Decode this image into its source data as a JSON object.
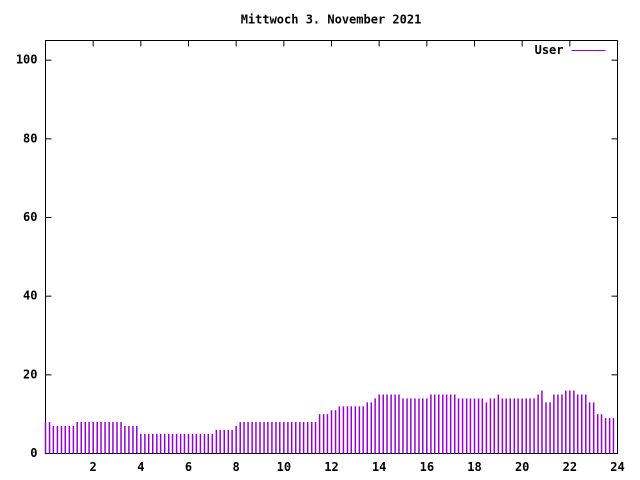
{
  "chart_data": {
    "type": "impulses",
    "title": "Mittwoch 3. November 2021",
    "x": [
      0,
      0.17,
      0.33,
      0.5,
      0.67,
      0.83,
      1,
      1.17,
      1.33,
      1.5,
      1.67,
      1.83,
      2,
      2.17,
      2.33,
      2.5,
      2.67,
      2.83,
      3,
      3.17,
      3.33,
      3.5,
      3.67,
      3.83,
      4,
      4.17,
      4.33,
      4.5,
      4.67,
      4.83,
      5,
      5.17,
      5.33,
      5.5,
      5.67,
      5.83,
      6,
      6.17,
      6.33,
      6.5,
      6.67,
      6.83,
      7,
      7.17,
      7.33,
      7.5,
      7.67,
      7.83,
      8,
      8.17,
      8.33,
      8.5,
      8.67,
      8.83,
      9,
      9.17,
      9.33,
      9.5,
      9.67,
      9.83,
      10,
      10.17,
      10.33,
      10.5,
      10.67,
      10.83,
      11,
      11.17,
      11.33,
      11.5,
      11.67,
      11.83,
      12,
      12.17,
      12.33,
      12.5,
      12.67,
      12.83,
      13,
      13.17,
      13.33,
      13.5,
      13.67,
      13.83,
      14,
      14.17,
      14.33,
      14.5,
      14.67,
      14.83,
      15,
      15.17,
      15.33,
      15.5,
      15.67,
      15.83,
      16,
      16.17,
      16.33,
      16.5,
      16.67,
      16.83,
      17,
      17.17,
      17.33,
      17.5,
      17.67,
      17.83,
      18,
      18.17,
      18.33,
      18.5,
      18.67,
      18.83,
      19,
      19.17,
      19.33,
      19.5,
      19.67,
      19.83,
      20,
      20.17,
      20.33,
      20.5,
      20.67,
      20.83,
      21,
      21.17,
      21.33,
      21.5,
      21.67,
      21.83,
      22,
      22.17,
      22.33,
      22.5,
      22.67,
      22.83,
      23,
      23.17,
      23.33,
      23.5,
      23.67,
      23.83
    ],
    "series": [
      {
        "name": "User",
        "color": "#9400d3",
        "values": [
          8,
          8,
          7,
          7,
          7,
          7,
          7,
          7,
          8,
          8,
          8,
          8,
          8,
          8,
          8,
          8,
          8,
          8,
          8,
          8,
          7,
          7,
          7,
          7,
          5,
          5,
          5,
          5,
          5,
          5,
          5,
          5,
          5,
          5,
          5,
          5,
          5,
          5,
          5,
          5,
          5,
          5,
          5,
          6,
          6,
          6,
          6,
          6,
          7,
          8,
          8,
          8,
          8,
          8,
          8,
          8,
          8,
          8,
          8,
          8,
          8,
          8,
          8,
          8,
          8,
          8,
          8,
          8,
          8,
          10,
          10,
          10,
          11,
          11,
          12,
          12,
          12,
          12,
          12,
          12,
          12,
          13,
          13,
          14,
          15,
          15,
          15,
          15,
          15,
          15,
          14,
          14,
          14,
          14,
          14,
          14,
          14,
          15,
          15,
          15,
          15,
          15,
          15,
          15,
          14,
          14,
          14,
          14,
          14,
          14,
          14,
          13,
          14,
          14,
          15,
          14,
          14,
          14,
          14,
          14,
          14,
          14,
          14,
          14,
          15,
          16,
          13,
          13,
          15,
          15,
          15,
          16,
          16,
          16,
          15,
          15,
          15,
          13,
          13,
          10,
          10,
          9,
          9,
          9
        ]
      }
    ],
    "xlim": [
      0,
      24
    ],
    "xticks": [
      2,
      4,
      6,
      8,
      10,
      12,
      14,
      16,
      18,
      20,
      22,
      24
    ],
    "ylim": [
      0,
      105
    ],
    "yticks": [
      0,
      20,
      40,
      60,
      80,
      100
    ],
    "legend_position": "top-right"
  }
}
